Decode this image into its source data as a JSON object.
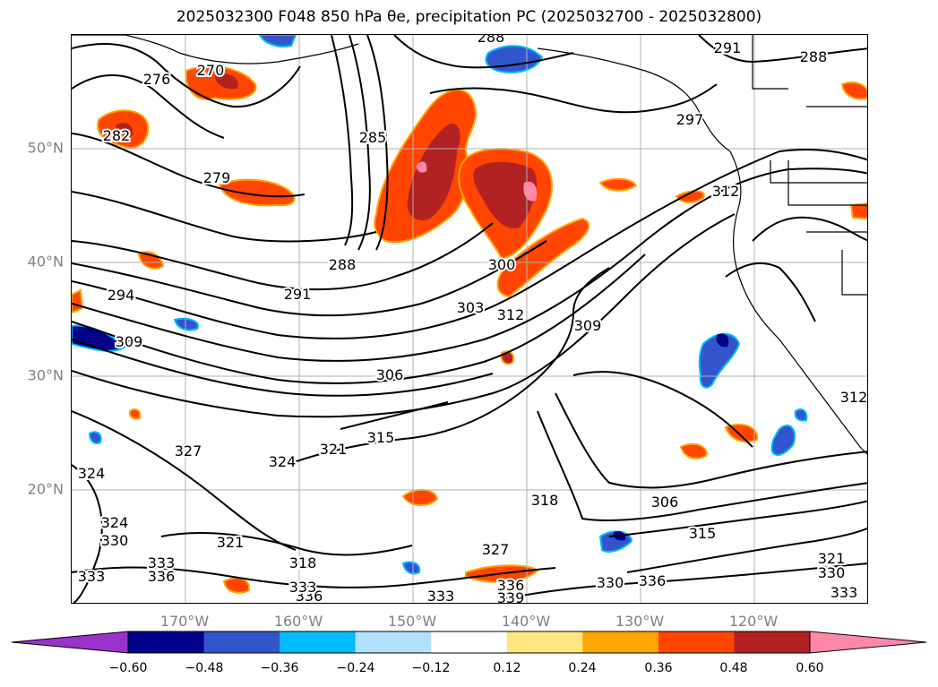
{
  "title": "2025032300 F048 850 hPa θe, precipitation PC (2025032700 - 2025032800)",
  "latitude_labels": [
    "50°N",
    "40°N",
    "30°N",
    "20°N"
  ],
  "longitude_labels": [
    "170°W",
    "160°W",
    "150°W",
    "140°W",
    "130°W",
    "120°W"
  ],
  "colorbar": {
    "colors": [
      "#9933cc",
      "#00008b",
      "#3355cc",
      "#00bbff",
      "#b3e0ff",
      "#ffffff",
      "#ffe680",
      "#ffa500",
      "#ff4500",
      "#b22222",
      "#ff88aa"
    ],
    "tick_labels": [
      "−0.60",
      "−0.48",
      "−0.36",
      "−0.24",
      "−0.12",
      "0.12",
      "0.24",
      "0.36",
      "0.48",
      "0.60"
    ]
  },
  "contour_labels": [
    "288",
    "291",
    "288",
    "276",
    "270",
    "282",
    "279",
    "285",
    "297",
    "312",
    "288",
    "291",
    "294",
    "300",
    "303",
    "312",
    "309",
    "309",
    "306",
    "327",
    "324",
    "321",
    "315",
    "324",
    "324",
    "330",
    "321",
    "318",
    "306",
    "315",
    "333",
    "336",
    "333",
    "318",
    "327",
    "336",
    "339",
    "330",
    "336",
    "333",
    "336",
    "333",
    "312",
    "321",
    "330",
    "333"
  ],
  "colors": {
    "contour": "#000000",
    "grid": "#b0b0b0",
    "coast": "#000000",
    "tick_text": "#808080"
  }
}
